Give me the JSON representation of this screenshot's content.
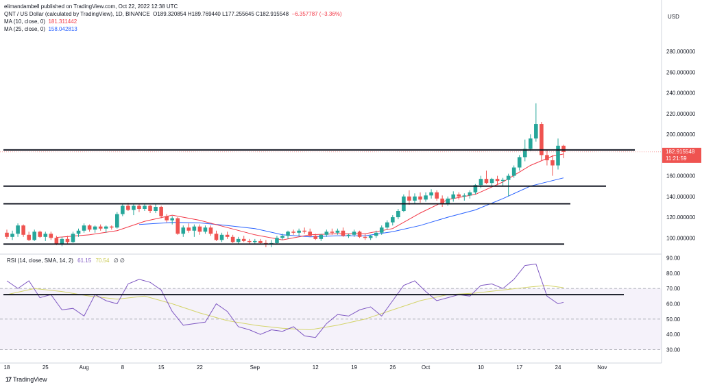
{
  "header": {
    "publisher_line": "elimandambell published on TradingView.com, Oct 22, 2022 12:38 UTC",
    "symbol": "QNT / US Dollar (calculated by TradingView), 1D, BINANCE",
    "ohlc": "O189.320854  H189.769440  L177.255645  C182.915548",
    "change": "−6.357787 (−3.36%)",
    "ma10_label": "MA (10, close, 0)",
    "ma10_value": "181.311442",
    "ma25_label": "MA (25, close, 0)",
    "ma25_value": "158.042813"
  },
  "rsi_header": {
    "label": "RSI (14, close, SMA, 14, 2)",
    "rsi_value": "61.15",
    "sma_value": "70.54",
    "extra": "∅  ∅"
  },
  "price_axis_currency": "USD",
  "last_price_label": "182.915548",
  "countdown_label": "11:21:59",
  "footer": {
    "brand": "TradingView"
  },
  "colors": {
    "up": "#26a69a",
    "down": "#ef5350",
    "ma10": "#f23645",
    "ma25": "#2962ff",
    "rsi": "#7e57c2",
    "rsi_sma": "#d4d46a",
    "level": "#131722"
  },
  "chart_data": [
    {
      "type": "candlestick",
      "title": "QNT / US Dollar (calculated by TradingView), 1D, BINANCE",
      "ylabel": "USD",
      "ylim": [
        85,
        300
      ],
      "y_ticks": [
        100,
        120,
        140,
        160,
        180,
        200,
        220,
        240,
        260,
        280
      ],
      "x_tick_labels": [
        "18",
        "25",
        "Aug",
        "8",
        "15",
        "22",
        "Sep",
        "12",
        "19",
        "26",
        "Oct",
        "10",
        "17",
        "24",
        "Nov"
      ],
      "x_ticks": [
        0,
        7,
        14,
        21,
        28,
        35,
        45,
        56,
        63,
        70,
        76,
        86,
        93,
        100,
        108
      ],
      "candles": [
        [
          105,
          108,
          99,
          101
        ],
        [
          101,
          107,
          98,
          104
        ],
        [
          104,
          114,
          101,
          112
        ],
        [
          112,
          113,
          101,
          103
        ],
        [
          103,
          106,
          97,
          98
        ],
        [
          98,
          108,
          97,
          106
        ],
        [
          106,
          107,
          100,
          101
        ],
        [
          101,
          106,
          97,
          104
        ],
        [
          104,
          106,
          98,
          100
        ],
        [
          100,
          102,
          93,
          94
        ],
        [
          94,
          101,
          92,
          99
        ],
        [
          99,
          102,
          94,
          96
        ],
        [
          96,
          106,
          95,
          104
        ],
        [
          104,
          109,
          101,
          107
        ],
        [
          107,
          114,
          105,
          112
        ],
        [
          112,
          113,
          106,
          108
        ],
        [
          108,
          112,
          105,
          111
        ],
        [
          111,
          113,
          107,
          109
        ],
        [
          109,
          112,
          105,
          111
        ],
        [
          111,
          112,
          108,
          110
        ],
        [
          110,
          125,
          109,
          123
        ],
        [
          123,
          133,
          121,
          131
        ],
        [
          131,
          134,
          126,
          127
        ],
        [
          127,
          133,
          122,
          131
        ],
        [
          131,
          133,
          125,
          128
        ],
        [
          128,
          133,
          126,
          131
        ],
        [
          131,
          132,
          124,
          126
        ],
        [
          126,
          133,
          124,
          130
        ],
        [
          130,
          131,
          119,
          121
        ],
        [
          121,
          123,
          115,
          117
        ],
        [
          117,
          121,
          113,
          119
        ],
        [
          119,
          120,
          103,
          104
        ],
        [
          104,
          112,
          101,
          110
        ],
        [
          110,
          114,
          105,
          107
        ],
        [
          107,
          113,
          101,
          111
        ],
        [
          111,
          113,
          103,
          106
        ],
        [
          106,
          112,
          104,
          110
        ],
        [
          110,
          112,
          102,
          104
        ],
        [
          104,
          107,
          97,
          98
        ],
        [
          98,
          105,
          96,
          103
        ],
        [
          103,
          106,
          99,
          101
        ],
        [
          101,
          103,
          95,
          96
        ],
        [
          96,
          101,
          94,
          99
        ],
        [
          99,
          102,
          96,
          97
        ],
        [
          97,
          99,
          94,
          96
        ],
        [
          96,
          99,
          94,
          97
        ],
        [
          97,
          99,
          94,
          95
        ],
        [
          95,
          98,
          91,
          94
        ],
        [
          94,
          98,
          91,
          95
        ],
        [
          95,
          102,
          94,
          100
        ],
        [
          100,
          104,
          98,
          102
        ],
        [
          102,
          107,
          99,
          106
        ],
        [
          106,
          108,
          103,
          105
        ],
        [
          105,
          109,
          102,
          107
        ],
        [
          107,
          110,
          104,
          106
        ],
        [
          106,
          109,
          101,
          102
        ],
        [
          102,
          104,
          98,
          99
        ],
        [
          99,
          104,
          97,
          103
        ],
        [
          103,
          108,
          101,
          106
        ],
        [
          106,
          109,
          103,
          105
        ],
        [
          105,
          109,
          103,
          107
        ],
        [
          107,
          110,
          101,
          102
        ],
        [
          102,
          104,
          100,
          103
        ],
        [
          103,
          108,
          101,
          106
        ],
        [
          106,
          107,
          100,
          101
        ],
        [
          101,
          104,
          98,
          100
        ],
        [
          100,
          103,
          98,
          102
        ],
        [
          102,
          107,
          100,
          105
        ],
        [
          105,
          112,
          103,
          110
        ],
        [
          110,
          117,
          108,
          115
        ],
        [
          115,
          122,
          112,
          120
        ],
        [
          120,
          128,
          118,
          126
        ],
        [
          126,
          142,
          125,
          140
        ],
        [
          140,
          146,
          132,
          136
        ],
        [
          136,
          143,
          133,
          140
        ],
        [
          140,
          144,
          134,
          137
        ],
        [
          137,
          144,
          135,
          141
        ],
        [
          141,
          147,
          138,
          144
        ],
        [
          144,
          146,
          136,
          138
        ],
        [
          138,
          141,
          130,
          133
        ],
        [
          133,
          140,
          131,
          138
        ],
        [
          138,
          145,
          135,
          142
        ],
        [
          142,
          144,
          137,
          140
        ],
        [
          140,
          143,
          136,
          141
        ],
        [
          141,
          146,
          138,
          144
        ],
        [
          144,
          152,
          142,
          151
        ],
        [
          151,
          160,
          148,
          157
        ],
        [
          157,
          165,
          152,
          153
        ],
        [
          153,
          158,
          150,
          157
        ],
        [
          157,
          160,
          151,
          155
        ],
        [
          155,
          158,
          150,
          156
        ],
        [
          156,
          162,
          140,
          160
        ],
        [
          160,
          170,
          158,
          168
        ],
        [
          168,
          180,
          165,
          178
        ],
        [
          178,
          195,
          174,
          186
        ],
        [
          186,
          200,
          184,
          196
        ],
        [
          196,
          230,
          193,
          210
        ],
        [
          210,
          212,
          175,
          180
        ],
        [
          180,
          185,
          170,
          175
        ],
        [
          175,
          180,
          160,
          170
        ],
        [
          170,
          196,
          166,
          189
        ],
        [
          189,
          190,
          177,
          183
        ]
      ],
      "ma10": [
        [
          9,
          100.5
        ],
        [
          15,
          103
        ],
        [
          20,
          107
        ],
        [
          25,
          116
        ],
        [
          30,
          122
        ],
        [
          35,
          117
        ],
        [
          40,
          110
        ],
        [
          45,
          103
        ],
        [
          50,
          98
        ],
        [
          55,
          103
        ],
        [
          60,
          104
        ],
        [
          65,
          104
        ],
        [
          70,
          109
        ],
        [
          75,
          124
        ],
        [
          80,
          137
        ],
        [
          85,
          142
        ],
        [
          90,
          154
        ],
        [
          95,
          170
        ],
        [
          99,
          179
        ],
        [
          101,
          181
        ]
      ],
      "ma25": [
        [
          24,
          113
        ],
        [
          30,
          115
        ],
        [
          35,
          114.5
        ],
        [
          40,
          112
        ],
        [
          45,
          109
        ],
        [
          50,
          103
        ],
        [
          55,
          101
        ],
        [
          60,
          102
        ],
        [
          65,
          102
        ],
        [
          70,
          106
        ],
        [
          75,
          112
        ],
        [
          80,
          120
        ],
        [
          85,
          127
        ],
        [
          90,
          138
        ],
        [
          95,
          150
        ],
        [
          101,
          158
        ]
      ],
      "horizontal_levels": [
        185,
        150,
        133,
        94
      ]
    },
    {
      "type": "line",
      "title": "RSI (14, close, SMA, 14, 2)",
      "ylim": [
        28,
        92
      ],
      "y_ticks": [
        30,
        40,
        50,
        60,
        70,
        80,
        90
      ],
      "bands": {
        "upper": 70,
        "middle": 50,
        "lower": 30
      },
      "horizontal_levels": [
        66
      ],
      "series": [
        {
          "name": "RSI",
          "x": [
            0,
            2,
            4,
            6,
            8,
            10,
            12,
            14,
            16,
            18,
            20,
            22,
            24,
            26,
            28,
            30,
            32,
            34,
            36,
            38,
            40,
            42,
            44,
            46,
            48,
            50,
            52,
            54,
            56,
            58,
            60,
            62,
            64,
            66,
            68,
            70,
            72,
            74,
            76,
            78,
            80,
            82,
            84,
            86,
            88,
            90,
            92,
            94,
            96,
            98,
            100,
            101
          ],
          "values": [
            75,
            70,
            75,
            64,
            66,
            56,
            57,
            52,
            66,
            62,
            60,
            73,
            76,
            74,
            69,
            55,
            46,
            47,
            48,
            60,
            55,
            45,
            43,
            40,
            43,
            42,
            45,
            39,
            38,
            47,
            53,
            52,
            56,
            58,
            52,
            62,
            72,
            75,
            68,
            62,
            64,
            66,
            65,
            72,
            73,
            70,
            76,
            85,
            86,
            65,
            60,
            61
          ]
        },
        {
          "name": "RSI-based MA",
          "x": [
            0,
            5,
            10,
            15,
            20,
            25,
            30,
            35,
            40,
            45,
            50,
            55,
            60,
            65,
            70,
            75,
            80,
            85,
            90,
            95,
            98,
            101
          ],
          "values": [
            66,
            70,
            68,
            65,
            63,
            65,
            60,
            54,
            49,
            46,
            44,
            43,
            46,
            50,
            56,
            62,
            66,
            67,
            69,
            71,
            72,
            70.5
          ]
        }
      ]
    }
  ]
}
